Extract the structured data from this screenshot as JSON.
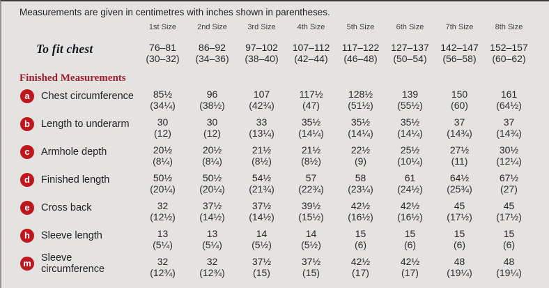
{
  "note": "Measurements are given in centimetres with inches shown in parentheses.",
  "columns": [
    "1st Size",
    "2nd Size",
    "3rd Size",
    "4th Size",
    "5th Size",
    "6th Size",
    "7th Size",
    "8th Size"
  ],
  "to_fit_chest": {
    "label": "To fit chest",
    "values": [
      {
        "cm": "76–81",
        "in": "(30–32)"
      },
      {
        "cm": "86–92",
        "in": "(34–36)"
      },
      {
        "cm": "97–102",
        "in": "(38–40)"
      },
      {
        "cm": "107–112",
        "in": "(42–44)"
      },
      {
        "cm": "117–122",
        "in": "(46–48)"
      },
      {
        "cm": "127–137",
        "in": "(50–54)"
      },
      {
        "cm": "142–147",
        "in": "(56–58)"
      },
      {
        "cm": "152–157",
        "in": "(60–62)"
      }
    ]
  },
  "section_heading": "Finished Measurements",
  "rows": [
    {
      "key": "a",
      "label": "Chest circumference",
      "values": [
        {
          "cm": "85½",
          "in": "(34¼)"
        },
        {
          "cm": "96",
          "in": "(38½)"
        },
        {
          "cm": "107",
          "in": "(42¾)"
        },
        {
          "cm": "117½",
          "in": "(47)"
        },
        {
          "cm": "128½",
          "in": "(51½)"
        },
        {
          "cm": "139",
          "in": "(55½)"
        },
        {
          "cm": "150",
          "in": "(60)"
        },
        {
          "cm": "161",
          "in": "(64½)"
        }
      ]
    },
    {
      "key": "b",
      "label": "Length to underarm",
      "values": [
        {
          "cm": "30",
          "in": "(12)"
        },
        {
          "cm": "30",
          "in": "(12)"
        },
        {
          "cm": "33",
          "in": "(13¼)"
        },
        {
          "cm": "35½",
          "in": "(14¼)"
        },
        {
          "cm": "35½",
          "in": "(14¼)"
        },
        {
          "cm": "35½",
          "in": "(14¼)"
        },
        {
          "cm": "37",
          "in": "(14¾)"
        },
        {
          "cm": "37",
          "in": "(14¾)"
        }
      ]
    },
    {
      "key": "c",
      "label": "Armhole depth",
      "values": [
        {
          "cm": "20½",
          "in": "(8¼)"
        },
        {
          "cm": "20½",
          "in": "(8¼)"
        },
        {
          "cm": "21½",
          "in": "(8½)"
        },
        {
          "cm": "21½",
          "in": "(8½)"
        },
        {
          "cm": "22½",
          "in": "(9)"
        },
        {
          "cm": "25½",
          "in": "(10¼)"
        },
        {
          "cm": "27½",
          "in": "(11)"
        },
        {
          "cm": "30½",
          "in": "(12¼)"
        }
      ]
    },
    {
      "key": "d",
      "label": "Finished length",
      "values": [
        {
          "cm": "50½",
          "in": "(20¼)"
        },
        {
          "cm": "50½",
          "in": "(20¼)"
        },
        {
          "cm": "54½",
          "in": "(21¾)"
        },
        {
          "cm": "57",
          "in": "(22¾)"
        },
        {
          "cm": "58",
          "in": "(23¼)"
        },
        {
          "cm": "61",
          "in": "(24½)"
        },
        {
          "cm": "64½",
          "in": "(25¾)"
        },
        {
          "cm": "67½",
          "in": "(27)"
        }
      ]
    },
    {
      "key": "e",
      "label": "Cross back",
      "values": [
        {
          "cm": "32",
          "in": "(12½)"
        },
        {
          "cm": "37½",
          "in": "(14½)"
        },
        {
          "cm": "37½",
          "in": "(14½)"
        },
        {
          "cm": "39½",
          "in": "(15½)"
        },
        {
          "cm": "42½",
          "in": "(16½)"
        },
        {
          "cm": "42½",
          "in": "(16½)"
        },
        {
          "cm": "45",
          "in": "(17½)"
        },
        {
          "cm": "45",
          "in": "(17½)"
        }
      ]
    },
    {
      "key": "h",
      "label": "Sleeve length",
      "values": [
        {
          "cm": "13",
          "in": "(5¼)"
        },
        {
          "cm": "13",
          "in": "(5¼)"
        },
        {
          "cm": "14",
          "in": "(5½)"
        },
        {
          "cm": "14",
          "in": "(5½)"
        },
        {
          "cm": "15",
          "in": "(6)"
        },
        {
          "cm": "15",
          "in": "(6)"
        },
        {
          "cm": "15",
          "in": "(6)"
        },
        {
          "cm": "15",
          "in": "(6)"
        }
      ]
    },
    {
      "key": "m",
      "label": "Sleeve circumference",
      "values": [
        {
          "cm": "32",
          "in": "(12¾)"
        },
        {
          "cm": "32",
          "in": "(12¾)"
        },
        {
          "cm": "37½",
          "in": "(15)"
        },
        {
          "cm": "37½",
          "in": "(15)"
        },
        {
          "cm": "42½",
          "in": "(17)"
        },
        {
          "cm": "42½",
          "in": "(17)"
        },
        {
          "cm": "48",
          "in": "(19¼)"
        },
        {
          "cm": "48",
          "in": "(19¼)"
        }
      ]
    }
  ],
  "colors": {
    "background": "#e5e3e1",
    "text": "#2a2a2a",
    "heading": "#a51c30",
    "badge": "#bf151d"
  }
}
